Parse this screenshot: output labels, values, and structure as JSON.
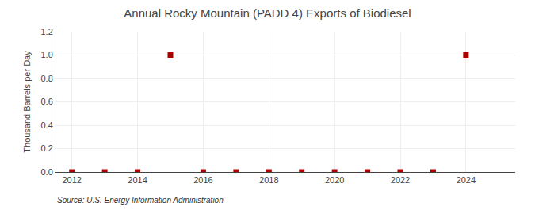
{
  "chart_data": {
    "type": "scatter",
    "title": "Annual Rocky Mountain (PADD 4) Exports of Biodiesel",
    "ylabel": "Thousand Barrels per Day",
    "annotations": [
      "Source: U.S. Energy Information Administration"
    ],
    "x": [
      2012,
      2013,
      2014,
      2015,
      2016,
      2017,
      2018,
      2019,
      2020,
      2021,
      2022,
      2023,
      2024
    ],
    "values": [
      0.0,
      0.0,
      0.0,
      1.0,
      0.0,
      0.0,
      0.0,
      0.0,
      0.0,
      0.0,
      0.0,
      0.0,
      1.0
    ],
    "color": "#aa0000",
    "marker": "square",
    "xlim": [
      2011.5,
      2025.5
    ],
    "xticks": [
      2012,
      2014,
      2016,
      2018,
      2020,
      2022,
      2024
    ],
    "ylim": [
      0.0,
      1.2
    ],
    "yticks": [
      {
        "value": 0.0,
        "label": "0.0"
      },
      0.2,
      0.4,
      0.6,
      0.8,
      {
        "value": 1.0,
        "label": "1.0"
      },
      1.2
    ],
    "grid": true
  }
}
